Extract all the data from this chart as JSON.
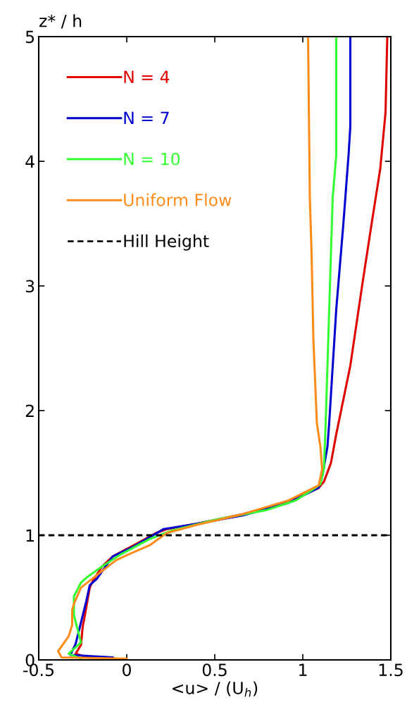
{
  "chart_data": {
    "type": "line",
    "xlabel": "<u> / (U$_{h}$)",
    "ylabel": "z* / h",
    "xlim": [
      -0.5,
      1.5
    ],
    "xticks": [
      -0.5,
      0,
      0.5,
      1,
      1.5
    ],
    "ylim": [
      0,
      5
    ],
    "yticks": [
      0,
      1,
      2,
      3,
      4,
      5
    ],
    "grid": false,
    "legend": "top left",
    "marker": "none",
    "line_style": "solid",
    "series": [
      {
        "name": "N = 4",
        "color": "#e00000",
        "x": [
          -0.22,
          -0.29,
          -0.26,
          -0.25,
          -0.24,
          -0.21,
          -0.19,
          -0.14,
          -0.08,
          0.04,
          0.17,
          0.23,
          0.39,
          0.66,
          0.92,
          1.09,
          1.12,
          1.16,
          1.19,
          1.27,
          1.34,
          1.39,
          1.44,
          1.47,
          1.48
        ],
        "values": [
          0.02,
          0.05,
          0.12,
          0.27,
          0.34,
          0.58,
          0.64,
          0.75,
          0.83,
          0.92,
          1.02,
          1.05,
          1.09,
          1.17,
          1.27,
          1.38,
          1.43,
          1.58,
          1.81,
          2.36,
          3.03,
          3.49,
          3.94,
          4.39,
          5
        ]
      },
      {
        "name": "N = 7",
        "color": "#0000d0",
        "x": [
          -0.08,
          -0.32,
          -0.29,
          -0.26,
          -0.23,
          -0.21,
          -0.17,
          -0.08,
          0.04,
          0.21,
          0.39,
          0.66,
          0.92,
          1.09,
          1.11,
          1.14,
          1.15,
          1.19,
          1.23,
          1.26,
          1.27,
          1.27
        ],
        "values": [
          0.02,
          0.04,
          0.13,
          0.3,
          0.47,
          0.6,
          0.65,
          0.83,
          0.91,
          1.05,
          1.09,
          1.16,
          1.26,
          1.38,
          1.47,
          1.71,
          1.9,
          2.81,
          3.49,
          4.05,
          4.28,
          5
        ]
      },
      {
        "name": "N = 10",
        "color": "#33ff33",
        "x": [
          -0.26,
          -0.33,
          -0.26,
          -0.28,
          -0.3,
          -0.3,
          -0.26,
          -0.22,
          -0.14,
          -0.03,
          0.13,
          0.26,
          0.52,
          0.79,
          0.96,
          1.05,
          1.1,
          1.12,
          1.13,
          1.15,
          1.17,
          1.19,
          1.19
        ],
        "values": [
          0.01,
          0.05,
          0.14,
          0.25,
          0.36,
          0.51,
          0.62,
          0.67,
          0.75,
          0.85,
          0.97,
          1.04,
          1.13,
          1.2,
          1.28,
          1.36,
          1.41,
          1.53,
          1.9,
          2.81,
          3.71,
          4.05,
          5
        ]
      },
      {
        "name": "Uniform Flow",
        "color": "#ff8c1a",
        "x": [
          0,
          -0.37,
          -0.39,
          -0.33,
          -0.31,
          -0.31,
          -0.3,
          -0.26,
          -0.17,
          -0.06,
          0,
          0.13,
          0.23,
          0.39,
          0.66,
          0.92,
          1.09,
          1.11,
          1.1,
          1.08,
          1.06,
          1.05,
          1.04,
          1.03
        ],
        "values": [
          0.01,
          0.02,
          0.07,
          0.19,
          0.28,
          0.4,
          0.45,
          0.58,
          0.68,
          0.8,
          0.84,
          0.92,
          1.02,
          1.08,
          1.17,
          1.28,
          1.4,
          1.53,
          1.71,
          1.9,
          2.58,
          3.26,
          3.71,
          5
        ]
      }
    ],
    "ref_lines": [
      {
        "axis": "y",
        "value": 1,
        "label": "Hill Height",
        "color": "#000000",
        "line_style": "dashed"
      }
    ]
  }
}
